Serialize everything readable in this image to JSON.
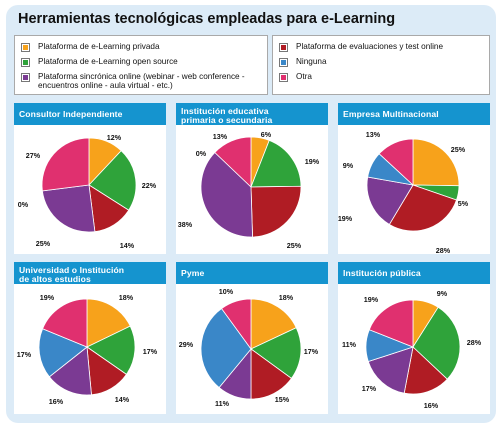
{
  "title": "Herramientas tecnológicas empleadas para e-Learning",
  "colors": {
    "privada": "#f7a21b",
    "open_source": "#2fa33a",
    "sincronica": "#7b3a93",
    "evaluaciones": "#b01c24",
    "ninguna": "#3a87c8",
    "otra": "#e0306f",
    "header": "#1594cf"
  },
  "legend": {
    "left": [
      {
        "label": "Plataforma de e-Learning privada",
        "color": "#f7a21b",
        "icon": "yellow-square"
      },
      {
        "label": "Plataforma de e-Learning open source",
        "color": "#2fa33a",
        "icon": "green-square"
      },
      {
        "label_line1": "Plataforma sincrónica online (webinar - web conference -",
        "label_line2": "encuentros online - aula virtual - etc.)",
        "color": "#7b3a93",
        "icon": "purple-square"
      }
    ],
    "right": [
      {
        "label": "Plataforma de evaluaciones y test online",
        "color": "#b01c24",
        "icon": "red-square"
      },
      {
        "label": "Ninguna",
        "color": "#3a87c8",
        "icon": "blue-square"
      },
      {
        "label": "Otra",
        "color": "#e0306f",
        "icon": "pink-square"
      }
    ]
  },
  "panels": [
    {
      "title_line1": "Consultor Independiente",
      "title_line2": ""
    },
    {
      "title_line1": "Institución educativa",
      "title_line2": "primaria o secundaria"
    },
    {
      "title_line1": "Empresa Multinacional",
      "title_line2": ""
    },
    {
      "title_line1": "Universidad o Institución",
      "title_line2": "de altos estudios"
    },
    {
      "title_line1": "Pyme",
      "title_line2": ""
    },
    {
      "title_line1": "Institución pública",
      "title_line2": ""
    }
  ],
  "chart_data": [
    {
      "type": "pie",
      "title": "Consultor Independiente",
      "slices": [
        {
          "category": "Plataforma de e-Learning privada",
          "value": 12,
          "label": "12%"
        },
        {
          "category": "Plataforma de e-Learning open source",
          "value": 22,
          "label": "22%"
        },
        {
          "category": "Plataforma de evaluaciones y test online",
          "value": 14,
          "label": "14%"
        },
        {
          "category": "Plataforma sincrónica online",
          "value": 25,
          "label": "25%"
        },
        {
          "category": "Ninguna",
          "value": 0,
          "label": "0%"
        },
        {
          "category": "Otra",
          "value": 27,
          "label": "27%"
        }
      ]
    },
    {
      "type": "pie",
      "title": "Institución educativa primaria o secundaria",
      "slices": [
        {
          "category": "Plataforma de e-Learning privada",
          "value": 6,
          "label": "6%"
        },
        {
          "category": "Plataforma de e-Learning open source",
          "value": 19,
          "label": "19%"
        },
        {
          "category": "Plataforma de evaluaciones y test online",
          "value": 25,
          "label": "25%"
        },
        {
          "category": "Plataforma sincrónica online",
          "value": 38,
          "label": "38%"
        },
        {
          "category": "Ninguna",
          "value": 0,
          "label": "0%"
        },
        {
          "category": "Otra",
          "value": 13,
          "label": "13%"
        }
      ]
    },
    {
      "type": "pie",
      "title": "Empresa Multinacional",
      "slices": [
        {
          "category": "Plataforma de e-Learning privada",
          "value": 25,
          "label": "25%"
        },
        {
          "category": "Plataforma de e-Learning open source",
          "value": 5,
          "label": "5%"
        },
        {
          "category": "Plataforma de evaluaciones y test online",
          "value": 28,
          "label": "28%"
        },
        {
          "category": "Plataforma sincrónica online",
          "value": 19,
          "label": "19%"
        },
        {
          "category": "Ninguna",
          "value": 9,
          "label": "9%"
        },
        {
          "category": "Otra",
          "value": 13,
          "label": "13%"
        }
      ]
    },
    {
      "type": "pie",
      "title": "Universidad o Institución de altos estudios",
      "slices": [
        {
          "category": "Plataforma de e-Learning privada",
          "value": 18,
          "label": "18%"
        },
        {
          "category": "Plataforma de e-Learning open source",
          "value": 17,
          "label": "17%"
        },
        {
          "category": "Plataforma de evaluaciones y test online",
          "value": 14,
          "label": "14%"
        },
        {
          "category": "Plataforma sincrónica online",
          "value": 16,
          "label": "16%"
        },
        {
          "category": "Ninguna",
          "value": 17,
          "label": "17%"
        },
        {
          "category": "Otra",
          "value": 19,
          "label": "19%"
        }
      ]
    },
    {
      "type": "pie",
      "title": "Pyme",
      "slices": [
        {
          "category": "Plataforma de e-Learning privada",
          "value": 18,
          "label": "18%"
        },
        {
          "category": "Plataforma de e-Learning open source",
          "value": 17,
          "label": "17%"
        },
        {
          "category": "Plataforma de evaluaciones y test online",
          "value": 15,
          "label": "15%"
        },
        {
          "category": "Plataforma sincrónica online",
          "value": 11,
          "label": "11%"
        },
        {
          "category": "Ninguna",
          "value": 29,
          "label": "29%"
        },
        {
          "category": "Otra",
          "value": 10,
          "label": "10%"
        }
      ]
    },
    {
      "type": "pie",
      "title": "Institución pública",
      "slices": [
        {
          "category": "Plataforma de e-Learning privada",
          "value": 9,
          "label": "9%"
        },
        {
          "category": "Plataforma de e-Learning open source",
          "value": 28,
          "label": "28%"
        },
        {
          "category": "Plataforma de evaluaciones y test online",
          "value": 16,
          "label": "16%"
        },
        {
          "category": "Plataforma sincrónica online",
          "value": 17,
          "label": "17%"
        },
        {
          "category": "Ninguna",
          "value": 11,
          "label": "11%"
        },
        {
          "category": "Otra",
          "value": 19,
          "label": "19%"
        }
      ]
    }
  ]
}
